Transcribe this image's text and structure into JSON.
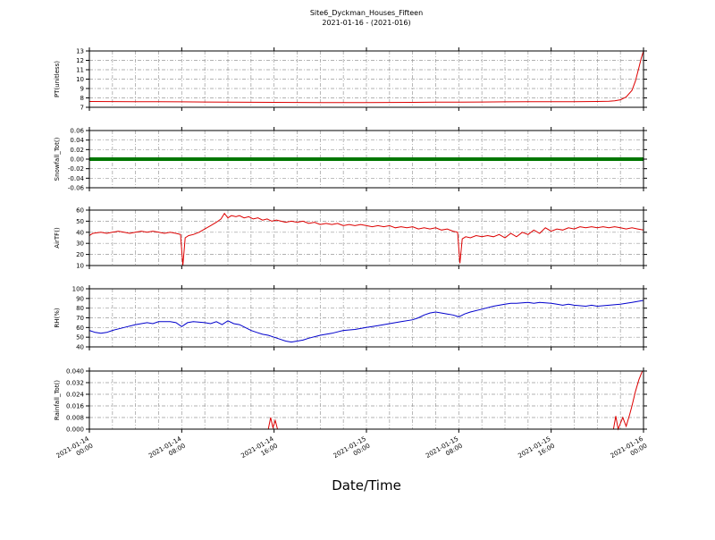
{
  "chart": {
    "title": "Site6_Dyckman_Houses_Fifteen",
    "subtitle": "2021-01-16 - (2021-016)",
    "xlabel": "Date/Time"
  },
  "x_axis": {
    "range_hours": [
      0,
      48
    ],
    "major_ticks_hours": [
      0,
      8,
      16,
      24,
      32,
      40,
      48
    ],
    "minor_grid_hours": 2,
    "tick_labels": [
      "2021-01-14\n00:00",
      "2021-01-14\n08:00",
      "2021-01-14\n16:00",
      "2021-01-15\n00:00",
      "2021-01-15\n08:00",
      "2021-01-15\n16:00",
      "2021-01-16\n00:00"
    ]
  },
  "chart_data": [
    {
      "type": "line",
      "ylabel": "PT(unitless)",
      "ylim": [
        7,
        13
      ],
      "yticks": [
        7,
        8,
        9,
        10,
        11,
        12,
        13
      ],
      "ytick_labels": [
        "7",
        "8",
        "9",
        "10",
        "11",
        "12",
        "13"
      ],
      "series": [
        {
          "name": "PT",
          "color": "#dd0000",
          "width": 1,
          "points": [
            [
              0,
              7.62
            ],
            [
              2,
              7.61
            ],
            [
              4,
              7.6
            ],
            [
              6,
              7.59
            ],
            [
              8,
              7.58
            ],
            [
              10,
              7.56
            ],
            [
              12,
              7.55
            ],
            [
              14,
              7.53
            ],
            [
              16,
              7.52
            ],
            [
              18,
              7.51
            ],
            [
              20,
              7.5
            ],
            [
              22,
              7.5
            ],
            [
              24,
              7.5
            ],
            [
              26,
              7.51
            ],
            [
              28,
              7.52
            ],
            [
              30,
              7.54
            ],
            [
              32,
              7.55
            ],
            [
              34,
              7.56
            ],
            [
              36,
              7.58
            ],
            [
              38,
              7.59
            ],
            [
              40,
              7.6
            ],
            [
              42,
              7.6
            ],
            [
              44,
              7.62
            ],
            [
              45,
              7.65
            ],
            [
              45.5,
              7.7
            ],
            [
              46,
              7.8
            ],
            [
              46.5,
              8.1
            ],
            [
              47,
              8.8
            ],
            [
              47.3,
              9.8
            ],
            [
              47.6,
              11.2
            ],
            [
              47.8,
              12.2
            ],
            [
              48,
              13.0
            ]
          ]
        }
      ]
    },
    {
      "type": "line",
      "ylabel": "Snowfall_Tot()",
      "ylim": [
        -0.06,
        0.06
      ],
      "yticks": [
        -0.06,
        -0.04,
        -0.02,
        0,
        0.02,
        0.04,
        0.06
      ],
      "ytick_labels": [
        "-0.06",
        "-0.04",
        "-0.02",
        "0.00",
        "0.02",
        "0.04",
        "0.06"
      ],
      "series": [
        {
          "name": "Snowfall_Tot",
          "color": "#007700",
          "width": 4,
          "points": [
            [
              0,
              0
            ],
            [
              48,
              0
            ]
          ]
        }
      ]
    },
    {
      "type": "line",
      "ylabel": "AirTF()",
      "ylim": [
        10,
        60
      ],
      "yticks": [
        10,
        20,
        30,
        40,
        50,
        60
      ],
      "ytick_labels": [
        "10",
        "20",
        "30",
        "40",
        "50",
        "60"
      ],
      "series": [
        {
          "name": "AirTF",
          "color": "#dd0000",
          "width": 1,
          "points": [
            [
              0,
              37
            ],
            [
              0.3,
              39
            ],
            [
              1,
              40
            ],
            [
              1.5,
              39
            ],
            [
              2,
              40
            ],
            [
              2.5,
              41
            ],
            [
              3,
              40
            ],
            [
              3.5,
              39
            ],
            [
              4,
              40
            ],
            [
              4.5,
              41
            ],
            [
              5,
              40
            ],
            [
              5.5,
              41
            ],
            [
              6,
              40
            ],
            [
              6.5,
              39
            ],
            [
              7,
              40
            ],
            [
              7.5,
              39
            ],
            [
              7.9,
              38
            ],
            [
              8.1,
              10
            ],
            [
              8.3,
              35
            ],
            [
              8.6,
              37
            ],
            [
              9,
              38
            ],
            [
              9.5,
              40
            ],
            [
              10,
              43
            ],
            [
              10.5,
              46
            ],
            [
              11,
              49
            ],
            [
              11.4,
              52
            ],
            [
              11.7,
              57
            ],
            [
              12,
              53
            ],
            [
              12.3,
              55
            ],
            [
              12.7,
              54
            ],
            [
              13,
              55
            ],
            [
              13.4,
              53
            ],
            [
              13.8,
              54
            ],
            [
              14.2,
              52
            ],
            [
              14.6,
              53
            ],
            [
              15,
              51
            ],
            [
              15.4,
              52
            ],
            [
              15.8,
              50
            ],
            [
              16.2,
              51
            ],
            [
              16.6,
              50
            ],
            [
              17,
              49
            ],
            [
              17.5,
              50
            ],
            [
              18,
              49
            ],
            [
              18.5,
              50
            ],
            [
              19,
              48
            ],
            [
              19.5,
              49
            ],
            [
              20,
              47
            ],
            [
              20.5,
              48
            ],
            [
              21,
              47
            ],
            [
              21.5,
              48
            ],
            [
              22,
              46
            ],
            [
              22.5,
              47
            ],
            [
              23,
              46
            ],
            [
              23.5,
              47
            ],
            [
              24,
              46
            ],
            [
              24.5,
              45
            ],
            [
              25,
              46
            ],
            [
              25.5,
              45
            ],
            [
              26,
              46
            ],
            [
              26.5,
              44
            ],
            [
              27,
              45
            ],
            [
              27.5,
              44
            ],
            [
              28,
              45
            ],
            [
              28.5,
              43
            ],
            [
              29,
              44
            ],
            [
              29.5,
              43
            ],
            [
              30,
              44
            ],
            [
              30.5,
              42
            ],
            [
              31,
              43
            ],
            [
              31.5,
              41
            ],
            [
              31.9,
              40
            ],
            [
              32.1,
              12
            ],
            [
              32.3,
              34
            ],
            [
              32.6,
              36
            ],
            [
              33,
              35
            ],
            [
              33.5,
              37
            ],
            [
              34,
              36
            ],
            [
              34.5,
              37
            ],
            [
              35,
              36
            ],
            [
              35.5,
              38
            ],
            [
              36,
              35
            ],
            [
              36.5,
              39
            ],
            [
              37,
              36
            ],
            [
              37.5,
              40
            ],
            [
              38,
              38
            ],
            [
              38.5,
              42
            ],
            [
              39,
              39
            ],
            [
              39.5,
              44
            ],
            [
              40,
              41
            ],
            [
              40.5,
              43
            ],
            [
              41,
              42
            ],
            [
              41.5,
              44
            ],
            [
              42,
              43
            ],
            [
              42.5,
              45
            ],
            [
              43,
              44
            ],
            [
              43.5,
              45
            ],
            [
              44,
              44
            ],
            [
              44.5,
              45
            ],
            [
              45,
              44
            ],
            [
              45.5,
              45
            ],
            [
              46,
              44
            ],
            [
              46.5,
              43
            ],
            [
              47,
              44
            ],
            [
              47.5,
              43
            ],
            [
              48,
              42
            ]
          ]
        }
      ]
    },
    {
      "type": "line",
      "ylabel": "RH(%)",
      "ylim": [
        40,
        100
      ],
      "yticks": [
        40,
        50,
        60,
        70,
        80,
        90,
        100
      ],
      "ytick_labels": [
        "40",
        "50",
        "60",
        "70",
        "80",
        "90",
        "100"
      ],
      "series": [
        {
          "name": "RH",
          "color": "#0000cc",
          "width": 1,
          "points": [
            [
              0,
              57
            ],
            [
              0.5,
              55
            ],
            [
              1,
              54
            ],
            [
              1.5,
              55
            ],
            [
              2,
              57
            ],
            [
              3,
              60
            ],
            [
              4,
              63
            ],
            [
              5,
              65
            ],
            [
              5.5,
              64
            ],
            [
              6,
              66
            ],
            [
              7,
              66
            ],
            [
              7.5,
              65
            ],
            [
              8,
              61
            ],
            [
              8.5,
              65
            ],
            [
              9,
              66
            ],
            [
              10,
              65
            ],
            [
              10.5,
              64
            ],
            [
              11,
              66
            ],
            [
              11.5,
              63
            ],
            [
              12,
              67
            ],
            [
              12.5,
              64
            ],
            [
              13,
              63
            ],
            [
              13.5,
              60
            ],
            [
              14,
              57
            ],
            [
              14.5,
              55
            ],
            [
              15,
              53
            ],
            [
              15.5,
              52
            ],
            [
              16,
              50
            ],
            [
              16.5,
              48
            ],
            [
              17,
              46
            ],
            [
              17.5,
              45
            ],
            [
              18,
              46
            ],
            [
              18.5,
              47
            ],
            [
              19,
              49
            ],
            [
              20,
              52
            ],
            [
              21,
              54
            ],
            [
              22,
              57
            ],
            [
              23,
              58
            ],
            [
              24,
              60
            ],
            [
              25,
              62
            ],
            [
              26,
              64
            ],
            [
              27,
              66
            ],
            [
              28,
              68
            ],
            [
              28.5,
              70
            ],
            [
              29,
              73
            ],
            [
              29.5,
              75
            ],
            [
              30,
              76
            ],
            [
              30.5,
              75
            ],
            [
              31,
              74
            ],
            [
              31.5,
              73
            ],
            [
              32,
              71
            ],
            [
              32.5,
              74
            ],
            [
              33,
              76
            ],
            [
              34,
              79
            ],
            [
              35,
              82
            ],
            [
              36,
              84
            ],
            [
              36.5,
              85
            ],
            [
              37,
              85
            ],
            [
              38,
              86
            ],
            [
              38.5,
              85
            ],
            [
              39,
              86
            ],
            [
              40,
              85
            ],
            [
              40.5,
              84
            ],
            [
              41,
              83
            ],
            [
              41.5,
              84
            ],
            [
              42,
              83
            ],
            [
              43,
              82
            ],
            [
              43.5,
              83
            ],
            [
              44,
              82
            ],
            [
              45,
              83
            ],
            [
              46,
              84
            ],
            [
              47,
              86
            ],
            [
              47.5,
              87
            ],
            [
              48,
              88
            ]
          ]
        }
      ]
    },
    {
      "type": "line",
      "ylabel": "Rainfall_Tot()",
      "ylim": [
        0,
        0.04
      ],
      "yticks": [
        0,
        0.008,
        0.016,
        0.024,
        0.032,
        0.04
      ],
      "ytick_labels": [
        "0.000",
        "0.008",
        "0.016",
        "0.024",
        "0.032",
        "0.040"
      ],
      "series": [
        {
          "name": "Rainfall_Tot",
          "color": "#dd0000",
          "width": 1,
          "points": [
            [
              0,
              0
            ],
            [
              15.5,
              0
            ],
            [
              15.7,
              0.008
            ],
            [
              15.9,
              0.001
            ],
            [
              16.1,
              0.006
            ],
            [
              16.3,
              0
            ],
            [
              45.4,
              0
            ],
            [
              45.6,
              0.009
            ],
            [
              45.8,
              0
            ],
            [
              46.2,
              0.008
            ],
            [
              46.5,
              0.002
            ],
            [
              46.8,
              0.01
            ],
            [
              47,
              0.016
            ],
            [
              47.3,
              0.026
            ],
            [
              47.6,
              0.034
            ],
            [
              47.9,
              0.04
            ],
            [
              48,
              0.04
            ]
          ]
        }
      ]
    }
  ]
}
